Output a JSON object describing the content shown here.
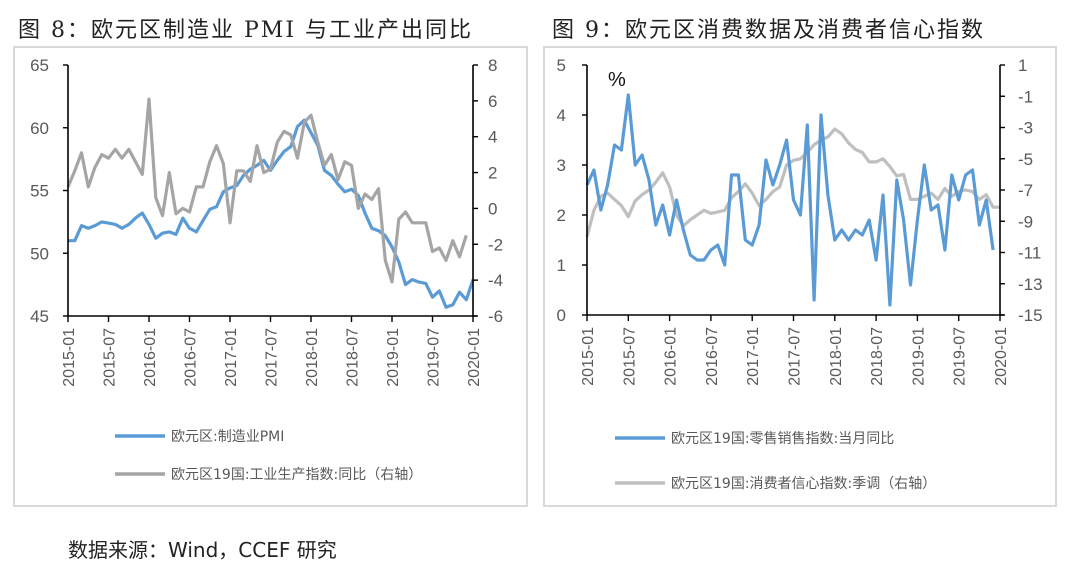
{
  "figures": {
    "fig8_title": "图 8：欧元区制造业 PMI 与工业产出同比",
    "fig9_title": "图 9：欧元区消费数据及消费者信心指数"
  },
  "source_note": "数据来源：Wind，CCEF 研究",
  "colors": {
    "blue": "#5b9bd5",
    "gray_dark": "#a5a5a5",
    "gray_light": "#bfbfbf",
    "axis": "#000000"
  },
  "chart_data": [
    {
      "type": "line",
      "id": "fig8",
      "title": "图 8：欧元区制造业 PMI 与工业产出同比",
      "x_start": "2015-01",
      "x_end": "2020-01",
      "x_tick_labels": [
        "2015-01",
        "2015-07",
        "2016-01",
        "2016-07",
        "2017-01",
        "2017-07",
        "2018-01",
        "2018-07",
        "2019-01",
        "2019-07",
        "2020-01"
      ],
      "y_left": {
        "range": [
          45,
          65
        ],
        "ticks": [
          45,
          50,
          55,
          60,
          65
        ]
      },
      "y_right": {
        "range": [
          -6,
          8
        ],
        "ticks": [
          -6,
          -4,
          -2,
          0,
          2,
          4,
          6,
          8
        ]
      },
      "legend": [
        "欧元区:制造业PMI",
        "欧元区19国:工业生产指数:同比（右轴）"
      ],
      "legend_position": "bottom",
      "series": [
        {
          "name": "欧元区:制造业PMI",
          "axis": "left",
          "color": "#5b9bd5",
          "values": [
            51.0,
            51.0,
            52.2,
            52.0,
            52.2,
            52.5,
            52.4,
            52.3,
            52.0,
            52.3,
            52.8,
            53.2,
            52.3,
            51.2,
            51.6,
            51.7,
            51.5,
            52.8,
            52.0,
            51.7,
            52.6,
            53.5,
            53.7,
            54.9,
            55.2,
            55.4,
            56.2,
            56.7,
            57.0,
            57.4,
            56.6,
            57.4,
            58.1,
            58.5,
            60.1,
            60.6,
            59.6,
            58.6,
            56.6,
            56.2,
            55.5,
            54.9,
            55.1,
            54.6,
            53.2,
            52.0,
            51.8,
            51.4,
            50.5,
            49.3,
            47.5,
            47.9,
            47.7,
            47.6,
            46.5,
            47.0,
            45.7,
            45.9,
            46.9,
            46.3,
            47.9
          ]
        },
        {
          "name": "欧元区19国:工业生产指数:同比（右轴）",
          "axis": "right",
          "color": "#a5a5a5",
          "values": [
            1.2,
            2.1,
            3.1,
            1.2,
            2.3,
            3.0,
            2.8,
            3.3,
            2.8,
            3.3,
            2.6,
            1.9,
            6.1,
            0.6,
            -0.4,
            2.0,
            -0.3,
            0.0,
            -0.2,
            1.2,
            1.2,
            2.6,
            3.5,
            2.5,
            -0.8,
            2.1,
            2.1,
            1.5,
            3.5,
            2.0,
            2.2,
            3.7,
            4.3,
            4.1,
            2.8,
            4.8,
            5.2,
            3.7,
            2.4,
            3.0,
            1.6,
            2.6,
            2.4,
            0.0,
            0.8,
            0.5,
            1.1,
            -2.9,
            -4.1,
            -0.6,
            -0.2,
            -0.8,
            -0.8,
            -0.8,
            -2.4,
            -2.2,
            -2.9,
            -1.8,
            -2.7,
            -1.5
          ]
        }
      ]
    },
    {
      "type": "line",
      "id": "fig9",
      "title": "图 9：欧元区消费数据及消费者信心指数",
      "x_start": "2015-01",
      "x_end": "2020-01",
      "x_tick_labels": [
        "2015-01",
        "2015-07",
        "2016-01",
        "2016-07",
        "2017-01",
        "2017-07",
        "2018-01",
        "2018-07",
        "2019-01",
        "2019-07",
        "2020-01"
      ],
      "unit_annotation": "%",
      "y_left": {
        "range": [
          0,
          5
        ],
        "ticks": [
          0,
          1,
          2,
          3,
          4,
          5
        ]
      },
      "y_right": {
        "range": [
          -15,
          1
        ],
        "ticks": [
          -15,
          -13,
          -11,
          -9,
          -7,
          -5,
          -3,
          -1,
          1
        ]
      },
      "legend": [
        "欧元区19国:零售销售指数:当月同比",
        "欧元区19国:消费者信心指数:季调（右轴）"
      ],
      "legend_position": "bottom",
      "series": [
        {
          "name": "欧元区19国:零售销售指数:当月同比",
          "axis": "left",
          "color": "#5b9bd5",
          "values": [
            2.6,
            2.9,
            2.1,
            2.6,
            3.4,
            3.3,
            4.4,
            3.0,
            3.2,
            2.7,
            1.8,
            2.2,
            1.6,
            2.3,
            1.7,
            1.2,
            1.1,
            1.1,
            1.3,
            1.4,
            1.0,
            2.8,
            2.8,
            1.5,
            1.4,
            1.8,
            3.1,
            2.6,
            3.0,
            3.5,
            2.3,
            2.0,
            3.8,
            0.3,
            4.0,
            2.4,
            1.5,
            1.7,
            1.5,
            1.7,
            1.6,
            1.9,
            1.1,
            2.4,
            0.2,
            2.7,
            1.9,
            0.6,
            1.9,
            3.0,
            2.1,
            2.2,
            1.3,
            2.8,
            2.3,
            2.8,
            2.9,
            1.8,
            2.3,
            1.3
          ]
        },
        {
          "name": "欧元区19国:消费者信心指数:季调（右轴）",
          "axis": "right",
          "color": "#bfbfbf",
          "values": [
            -10.0,
            -8.3,
            -7.4,
            -7.2,
            -7.6,
            -8.0,
            -8.7,
            -7.7,
            -7.3,
            -7.0,
            -6.5,
            -5.9,
            -6.8,
            -8.6,
            -9.3,
            -8.9,
            -8.6,
            -8.3,
            -8.5,
            -8.4,
            -8.3,
            -7.5,
            -7.1,
            -6.6,
            -7.2,
            -8.0,
            -7.6,
            -7.1,
            -6.8,
            -5.4,
            -5.1,
            -5.0,
            -4.6,
            -4.1,
            -3.8,
            -3.6,
            -3.1,
            -3.4,
            -4.0,
            -4.4,
            -4.6,
            -5.2,
            -5.2,
            -5.0,
            -5.5,
            -6.1,
            -6.0,
            -7.6,
            -7.6,
            -7.4,
            -7.2,
            -7.6,
            -6.9,
            -7.4,
            -7.1,
            -7.0,
            -7.1,
            -7.6,
            -7.3,
            -8.1,
            -8.1
          ]
        }
      ]
    }
  ]
}
